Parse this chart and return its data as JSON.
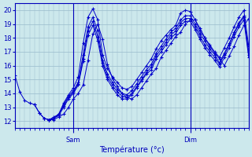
{
  "xlabel": "Température (°c)",
  "bg_color": "#cce8ec",
  "line_color": "#0000cc",
  "grid_color": "#99bbcc",
  "axis_color": "#0000bb",
  "ylim": [
    11.5,
    20.5
  ],
  "yticks": [
    12,
    13,
    14,
    15,
    16,
    17,
    18,
    19,
    20
  ],
  "xlim": [
    0,
    48
  ],
  "sam_x": 12,
  "dim_x": 36,
  "series": [
    {
      "start": 0,
      "y": [
        15.3,
        14.1,
        13.5,
        13.3,
        13.2,
        12.6,
        12.2,
        12.1,
        12.2,
        12.5,
        13.3,
        13.9,
        14.4,
        15.2,
        17.6,
        19.5,
        20.1,
        19.3,
        16.8,
        15.8,
        15.2,
        14.8,
        14.4,
        14.3,
        14.5,
        15.0,
        15.5,
        16.0,
        16.5,
        17.2,
        17.8,
        18.2,
        18.6,
        18.9,
        19.8,
        20.0,
        19.9,
        19.3,
        18.5,
        18.0,
        17.5,
        17.0,
        16.6,
        17.3,
        18.0,
        18.8,
        19.5,
        20.0,
        17.4
      ]
    },
    {
      "start": 4,
      "y": [
        13.2,
        12.6,
        12.2,
        12.1,
        12.2,
        12.5,
        13.2,
        13.8,
        14.2,
        14.8,
        16.8,
        18.8,
        19.5,
        18.5,
        16.4,
        15.4,
        14.8,
        14.3,
        14.0,
        13.9,
        14.2,
        14.7,
        15.2,
        15.7,
        16.1,
        16.9,
        17.4,
        17.9,
        18.4,
        18.7,
        19.3,
        19.6,
        19.6,
        19.0,
        18.3,
        17.8,
        17.2,
        16.8,
        16.2,
        16.9,
        17.6,
        18.4,
        19.1,
        19.6,
        17.0
      ]
    },
    {
      "start": 6,
      "y": [
        12.2,
        12.1,
        12.3,
        12.5,
        13.1,
        13.7,
        14.1,
        14.7,
        16.5,
        18.5,
        19.2,
        18.1,
        16.2,
        15.2,
        14.6,
        14.1,
        13.8,
        13.7,
        14.0,
        14.5,
        15.0,
        15.5,
        15.9,
        16.7,
        17.2,
        17.7,
        18.2,
        18.5,
        19.1,
        19.4,
        19.4,
        18.8,
        18.1,
        17.5,
        17.0,
        16.6,
        16.1,
        16.8,
        17.5,
        18.3,
        19.0,
        19.5,
        16.8
      ]
    },
    {
      "start": 7,
      "y": [
        12.1,
        12.1,
        12.3,
        12.5,
        13.0,
        13.6,
        14.0,
        14.6,
        16.4,
        18.3,
        19.0,
        17.9,
        16.1,
        15.1,
        14.5,
        14.0,
        13.7,
        13.6,
        13.9,
        14.4,
        14.9,
        15.4,
        15.8,
        16.6,
        17.1,
        17.6,
        18.1,
        18.4,
        19.0,
        19.3,
        19.3,
        18.7,
        18.0,
        17.4,
        16.9,
        16.5,
        16.0,
        16.7,
        17.4,
        18.2,
        18.9,
        19.4,
        16.7
      ]
    },
    {
      "start": 8,
      "y": [
        12.2,
        12.4,
        13.0,
        13.6,
        14.0,
        14.6,
        16.3,
        18.2,
        18.9,
        17.8,
        16.0,
        15.0,
        14.4,
        13.9,
        13.6,
        13.6,
        13.9,
        14.4,
        14.9,
        15.4,
        15.7,
        16.5,
        17.0,
        17.5,
        18.0,
        18.3,
        18.9,
        19.2,
        19.2,
        18.6,
        17.9,
        17.3,
        16.8,
        16.4,
        15.9,
        16.6,
        17.3,
        18.1,
        18.8,
        19.3,
        16.6
      ]
    }
  ]
}
